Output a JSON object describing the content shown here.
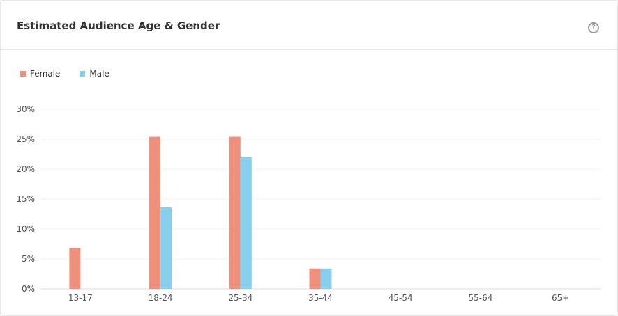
{
  "header": {
    "title": "Estimated Audience Age & Gender",
    "help_icon": "question-circle-icon"
  },
  "chart_data": {
    "type": "bar",
    "title": "",
    "categories": [
      "13-17",
      "18-24",
      "25-34",
      "35-44",
      "45-54",
      "55-64",
      "65+"
    ],
    "series": [
      {
        "name": "Female",
        "color": "#ee907b",
        "values": [
          6.8,
          25.4,
          25.4,
          3.4,
          0,
          0,
          0
        ]
      },
      {
        "name": "Male",
        "color": "#86d0ed",
        "values": [
          0,
          13.6,
          22.0,
          3.4,
          0,
          0,
          0
        ]
      }
    ],
    "yticks": [
      "0%",
      "5%",
      "10%",
      "15%",
      "20%",
      "25%",
      "30%"
    ],
    "ylim": [
      0,
      30
    ],
    "xlabel": "",
    "ylabel": "",
    "grid": true,
    "legend": "top-left"
  }
}
